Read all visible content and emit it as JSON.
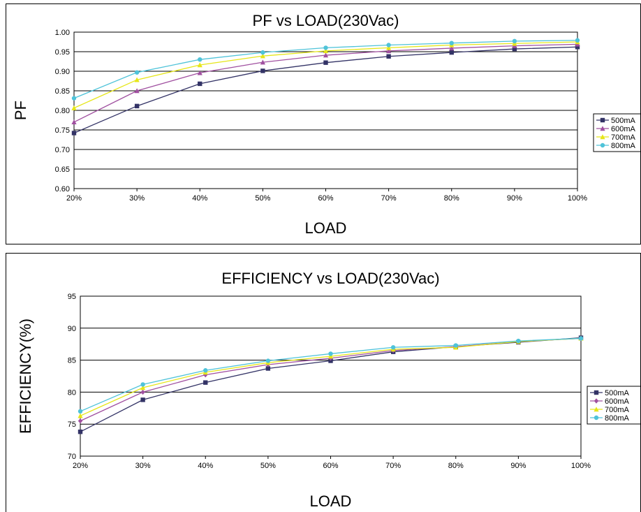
{
  "chart_data": [
    {
      "type": "line",
      "title": "PF vs LOAD(230Vac)",
      "xlabel": "LOAD",
      "ylabel": "PF",
      "categories": [
        "20%",
        "30%",
        "40%",
        "50%",
        "60%",
        "70%",
        "80%",
        "90%",
        "100%"
      ],
      "ylim": [
        0.6,
        1.0
      ],
      "ytick_step": 0.05,
      "ytick_labels": [
        "0.60",
        "0.65",
        "0.70",
        "0.75",
        "0.80",
        "0.85",
        "0.90",
        "0.95",
        "1.00"
      ],
      "grid": true,
      "legend_position": "right",
      "series": [
        {
          "name": "500mA",
          "color": "#333366",
          "marker": "square",
          "values": [
            0.742,
            0.811,
            0.868,
            0.901,
            0.922,
            0.938,
            0.948,
            0.957,
            0.962
          ]
        },
        {
          "name": "600mA",
          "color": "#a050a0",
          "marker": "triangle",
          "values": [
            0.77,
            0.85,
            0.896,
            0.923,
            0.941,
            0.952,
            0.959,
            0.965,
            0.969
          ]
        },
        {
          "name": "700mA",
          "color": "#e6e619",
          "marker": "triangle",
          "values": [
            0.806,
            0.878,
            0.916,
            0.939,
            0.952,
            0.96,
            0.967,
            0.971,
            0.975
          ]
        },
        {
          "name": "800mA",
          "color": "#4fc3d9",
          "marker": "circle",
          "values": [
            0.831,
            0.897,
            0.93,
            0.948,
            0.96,
            0.967,
            0.972,
            0.977,
            0.979
          ]
        }
      ]
    },
    {
      "type": "line",
      "title": "EFFICIENCY vs LOAD(230Vac)",
      "xlabel": "LOAD",
      "ylabel": "EFFICIENCY(%)",
      "categories": [
        "20%",
        "30%",
        "40%",
        "50%",
        "60%",
        "70%",
        "80%",
        "90%",
        "100%"
      ],
      "ylim": [
        70,
        95
      ],
      "ytick_step": 5,
      "ytick_labels": [
        "70",
        "75",
        "80",
        "85",
        "90",
        "95"
      ],
      "grid": true,
      "legend_position": "right",
      "series": [
        {
          "name": "500mA",
          "color": "#333366",
          "marker": "square",
          "values": [
            73.8,
            78.8,
            81.5,
            83.7,
            84.9,
            86.3,
            87.1,
            87.8,
            88.5
          ]
        },
        {
          "name": "600mA",
          "color": "#a050a0",
          "marker": "diamond",
          "values": [
            75.5,
            80.0,
            82.7,
            84.3,
            85.3,
            86.5,
            87.1,
            87.9,
            88.4
          ]
        },
        {
          "name": "700mA",
          "color": "#e6e619",
          "marker": "triangle",
          "values": [
            76.3,
            80.7,
            83.1,
            84.6,
            85.6,
            86.7,
            87.0,
            87.9,
            88.4
          ]
        },
        {
          "name": "800mA",
          "color": "#4fc3d9",
          "marker": "circle",
          "values": [
            77.0,
            81.2,
            83.4,
            84.9,
            86.0,
            87.0,
            87.3,
            88.0,
            88.4
          ]
        }
      ]
    }
  ]
}
